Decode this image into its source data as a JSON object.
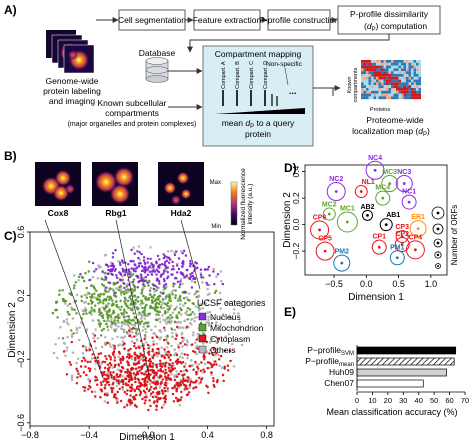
{
  "panel_a": {
    "letter": "A)",
    "left_caption": [
      "Genome-wide",
      "protein labeling",
      "and imaging"
    ],
    "steps": [
      "Cell segmentation",
      "Feature extraction",
      "P-profile construction",
      "P-profile dissimilarity",
      "computation"
    ],
    "step4_symbol": "d",
    "step4_sub": "P",
    "database": "Database",
    "known_caption": [
      "Known subcellular",
      "compartments",
      "(major organelles and protein complexes)"
    ],
    "mapping_title": "Compartment mapping",
    "compartments": [
      "Compart. A",
      "Compart. B",
      "Compart. C",
      "Compart. D"
    ],
    "non_specific": "Non-specific",
    "mean_label": "mean",
    "mean_sub": "P",
    "mean_rest": "to a query",
    "protein": "protein",
    "heatmap_ylabel": [
      "Known",
      "compartments"
    ],
    "heatmap_xlabel": "Proteins",
    "map_caption_1": "Proteome-wide",
    "map_caption_2": "localization map",
    "map_symbol": "d",
    "map_sub": "P"
  },
  "panel_b": {
    "letter": "B)",
    "proteins": [
      "Cox8",
      "Rbg1",
      "Hda2"
    ],
    "colorbar_label": [
      "Normalized fluorescence",
      "intensity (a.u.)"
    ],
    "colorbar_max": "Max",
    "colorbar_min": "Min"
  },
  "panel_c": {
    "letter": "C)",
    "legend_title": "UCSF categories",
    "xlabel": "Dimension 1",
    "ylabel": "Dimension 2",
    "categories": [
      {
        "name": "Nucleus",
        "color": "#8b2be2"
      },
      {
        "name": "Mitochondrion",
        "color": "#5ea32a"
      },
      {
        "name": "Cytoplasm",
        "color": "#e8141a"
      },
      {
        "name": "Others",
        "color": "#b8b8b8"
      }
    ]
  },
  "panel_d": {
    "letter": "D)",
    "size_legend_label": "Number of ORFs"
  },
  "panel_e": {
    "letter": "E)",
    "xlabel": "Mean classification accuracy",
    "xlabel_unit": "(%)",
    "profile_prefix": "P−profile",
    "sub_svm": "SVM",
    "sub_mean": "mean",
    "bar_label_huh": "Huh09",
    "bar_label_chen": "Chen07"
  },
  "chart_data": [
    {
      "type": "scatter",
      "panel": "C",
      "xlabel": "Dimension 1",
      "ylabel": "Dimension 2",
      "xlim": [
        -0.8,
        0.85
      ],
      "ylim": [
        -0.62,
        0.6
      ],
      "xticks": [
        -0.8,
        -0.4,
        0.0,
        0.4,
        0.8
      ],
      "xtick_labels": [
        "−0.8",
        "−0.4",
        "0.0",
        "0.4",
        "0.8"
      ],
      "yticks": [
        -0.6,
        -0.2,
        0.2,
        0.6
      ],
      "ytick_labels": [
        "−0.6",
        "−0.2",
        "0.2",
        "0.6"
      ],
      "legend_position": "right",
      "series": [
        {
          "name": "Nucleus",
          "color": "#8b2be2"
        },
        {
          "name": "Mitochondrion",
          "color": "#5ea32a"
        },
        {
          "name": "Cytoplasm",
          "color": "#e8141a"
        },
        {
          "name": "Others",
          "color": "#b8b8b8"
        }
      ]
    },
    {
      "type": "scatter",
      "panel": "D",
      "xlabel": "Dimension 1",
      "ylabel": "Dimension 2",
      "xlim": [
        -0.95,
        0.75
      ],
      "ylim": [
        -0.38,
        0.45
      ],
      "xticks": [
        -0.5,
        0.0,
        0.5,
        1.0
      ],
      "xtick_labels": [
        "−0.5",
        "0.0",
        "0.5",
        "1.0"
      ],
      "yticks": [
        -0.2,
        0.0,
        0.2,
        0.4
      ],
      "ytick_labels": [
        "−0.2",
        "0.0",
        "0.2",
        "0.4"
      ],
      "points": [
        {
          "label": "NC4",
          "x": 0.06,
          "y": 0.41,
          "r": 9,
          "color": "#8b2be2"
        },
        {
          "label": "MC3",
          "x": 0.27,
          "y": 0.31,
          "r": 8,
          "color": "#5ea32a"
        },
        {
          "label": "NC3",
          "x": 0.48,
          "y": 0.31,
          "r": 8,
          "color": "#8b2be2"
        },
        {
          "label": "NC2",
          "x": -0.5,
          "y": 0.25,
          "r": 9,
          "color": "#8b2be2"
        },
        {
          "label": "NL1",
          "x": -0.14,
          "y": 0.25,
          "r": 6,
          "color": "#e8141a"
        },
        {
          "label": "MC4",
          "x": 0.17,
          "y": 0.2,
          "r": 7,
          "color": "#5ea32a"
        },
        {
          "label": "NC1",
          "x": 0.55,
          "y": 0.17,
          "r": 7,
          "color": "#8b2be2"
        },
        {
          "label": "AB2",
          "x": -0.05,
          "y": 0.07,
          "r": 5,
          "color": "#000000"
        },
        {
          "label": "MC2",
          "x": -0.6,
          "y": 0.08,
          "r": 6,
          "color": "#5ea32a"
        },
        {
          "label": "MC1",
          "x": -0.34,
          "y": 0.02,
          "r": 10,
          "color": "#5ea32a"
        },
        {
          "label": "AB1",
          "x": 0.22,
          "y": 0.0,
          "r": 6,
          "color": "#000000"
        },
        {
          "label": "ER1",
          "x": 0.68,
          "y": -0.03,
          "r": 8,
          "color": "#ff8c00"
        },
        {
          "label": "CP6",
          "x": -0.74,
          "y": -0.04,
          "r": 9,
          "color": "#e8141a"
        },
        {
          "label": "CP3",
          "x": 0.45,
          "y": -0.09,
          "r": 6,
          "color": "#e8141a"
        },
        {
          "label": "CP2",
          "x": 0.45,
          "y": -0.15,
          "r": 7,
          "color": "#e8141a"
        },
        {
          "label": "CP1",
          "x": 0.12,
          "y": -0.17,
          "r": 7,
          "color": "#e8141a"
        },
        {
          "label": "CP4",
          "x": 0.64,
          "y": -0.19,
          "r": 9,
          "color": "#e8141a"
        },
        {
          "label": "CP5",
          "x": -0.66,
          "y": -0.2,
          "r": 9,
          "color": "#e8141a"
        },
        {
          "label": "PM1",
          "x": 0.38,
          "y": -0.25,
          "r": 7,
          "color": "#1f77b4"
        },
        {
          "label": "PM2",
          "x": -0.42,
          "y": -0.29,
          "r": 8,
          "color": "#1f77b4"
        }
      ]
    },
    {
      "type": "bar",
      "panel": "E",
      "orientation": "horizontal",
      "categories": [
        "P−profile SVM",
        "P−profile mean",
        "Huh09",
        "Chen07"
      ],
      "values": [
        64,
        63,
        58,
        43
      ],
      "xlim": [
        0,
        70
      ],
      "xticks": [
        0,
        10,
        20,
        30,
        40,
        50,
        60,
        70
      ],
      "xtick_labels": [
        "0",
        "10",
        "20",
        "30",
        "40",
        "50",
        "60",
        "70"
      ],
      "xlabel": "Mean classification accuracy (%)"
    }
  ]
}
